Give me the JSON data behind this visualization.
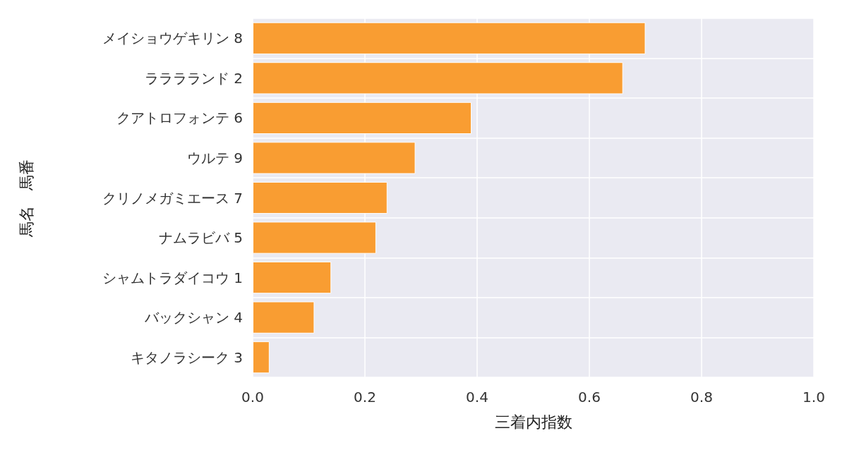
{
  "chart_data": {
    "type": "bar",
    "orientation": "horizontal",
    "xlabel": "三着内指数",
    "ylabel": "馬名　馬番",
    "categories": [
      "メイショウゲキリン 8",
      "ラララランド 2",
      "クアトロフォンテ 6",
      "ウルテ 9",
      "クリノメガミエース 7",
      "ナムラビバ 5",
      "シャムトラダイコウ 1",
      "バックシャン 4",
      "キタノラシーク 3"
    ],
    "values": [
      0.7,
      0.66,
      0.39,
      0.29,
      0.24,
      0.22,
      0.14,
      0.11,
      0.03
    ],
    "color": "#f99d32",
    "xlim": [
      0,
      1
    ],
    "xticks": [
      {
        "value": 0,
        "label": "0.0"
      },
      {
        "value": 0.2,
        "label": "0.2"
      },
      {
        "value": 0.4,
        "label": "0.4"
      },
      {
        "value": 0.6,
        "label": "0.6"
      },
      {
        "value": 0.8,
        "label": "0.8"
      },
      {
        "value": 1,
        "label": "1.0"
      }
    ],
    "grid": true
  }
}
